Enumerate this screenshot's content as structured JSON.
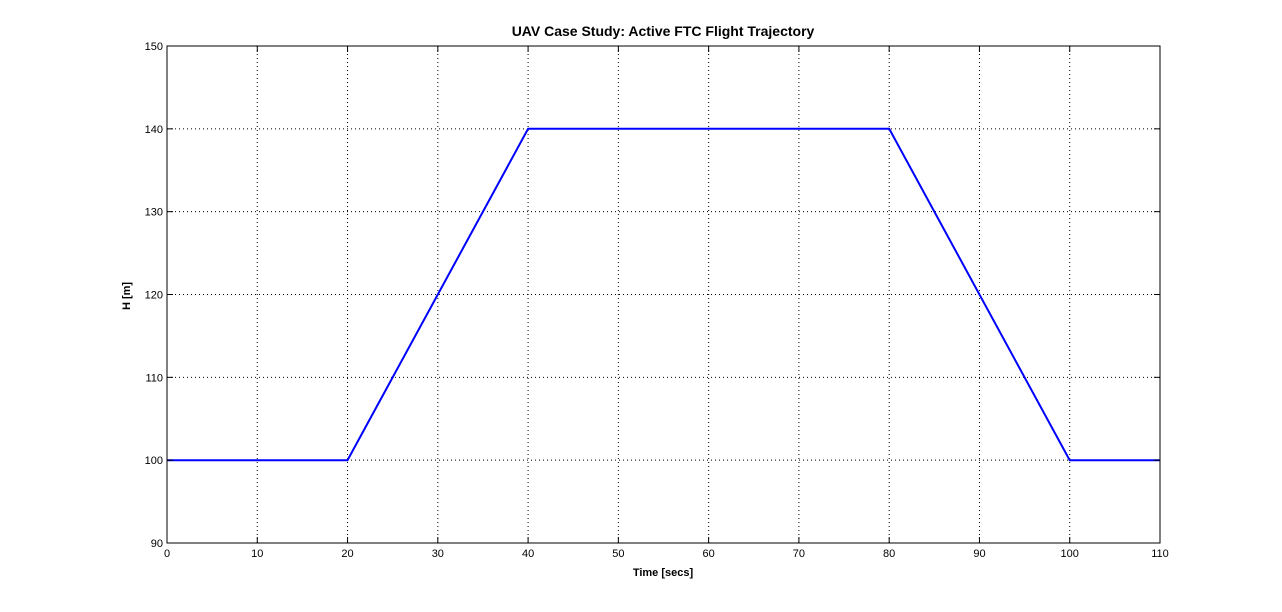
{
  "chart_data": {
    "type": "line",
    "title": "UAV Case Study: Active FTC Flight Trajectory",
    "xlabel": "Time [secs]",
    "ylabel": "H [m]",
    "xlim": [
      0,
      110
    ],
    "ylim": [
      90,
      150
    ],
    "xticks": [
      0,
      10,
      20,
      30,
      40,
      50,
      60,
      70,
      80,
      90,
      100,
      110
    ],
    "yticks": [
      90,
      100,
      110,
      120,
      130,
      140,
      150
    ],
    "grid": true,
    "grid_style": "dotted",
    "series": [
      {
        "color": "#0000ff",
        "x": [
          0,
          20,
          40,
          80,
          100,
          110
        ],
        "y": [
          100,
          100,
          140,
          140,
          100,
          100
        ]
      }
    ]
  }
}
